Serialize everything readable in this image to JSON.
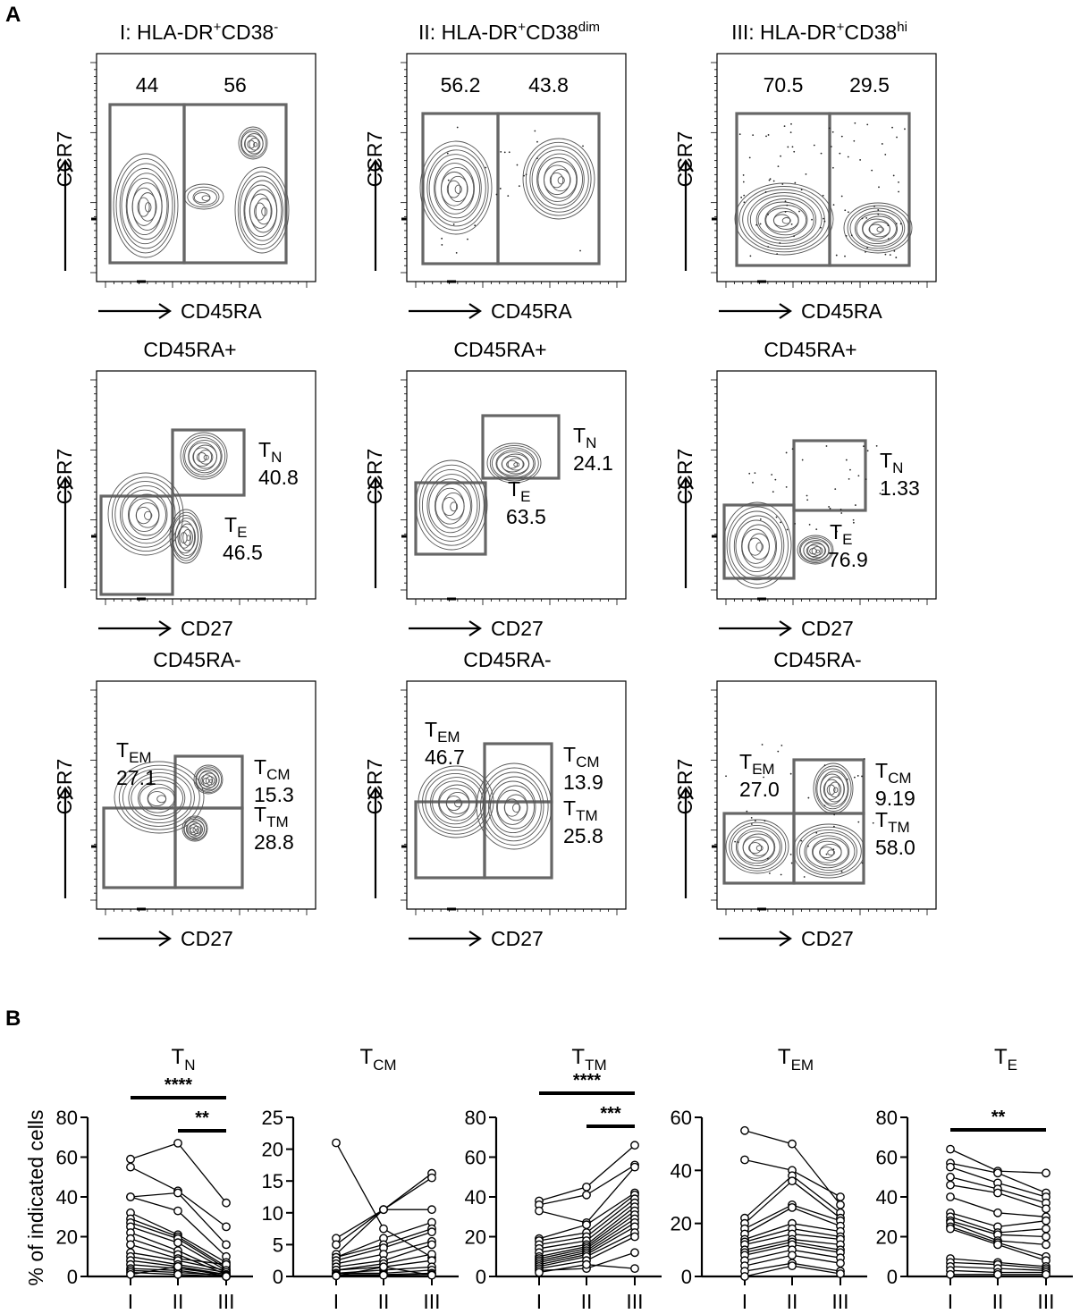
{
  "panel_labels": {
    "a": "A",
    "b": "B"
  },
  "colors": {
    "gate": "#666666",
    "contour": "#555555",
    "ink": "#000000"
  },
  "columns": [
    {
      "roman": "I",
      "prefix": "HLA-DR",
      "sup1": "+",
      "mid": "CD38",
      "sup2": "-"
    },
    {
      "roman": "II",
      "prefix": "HLA-DR",
      "sup1": "+",
      "mid": "CD38",
      "sup2": "dim"
    },
    {
      "roman": "III",
      "prefix": "HLA-DR",
      "sup1": "+",
      "mid": "CD38",
      "sup2": "hi"
    }
  ],
  "row_titles": [
    "",
    "CD45RA+",
    "CD45RA-"
  ],
  "axes": {
    "y": "CCR7",
    "x_row1": "CD45RA",
    "x_row2": "CD27",
    "x_row3": "CD27"
  },
  "flow_values": {
    "row1": [
      [
        "44",
        "56"
      ],
      [
        "56.2",
        "43.8"
      ],
      [
        "70.5",
        "29.5"
      ]
    ],
    "row2": [
      {
        "tn": "40.8",
        "te": "46.5"
      },
      {
        "tn": "24.1",
        "te": "63.5"
      },
      {
        "tn": "1.33",
        "te": "76.9"
      }
    ],
    "row3": [
      {
        "tem": "27.1",
        "tcm": "15.3",
        "ttm": "28.8"
      },
      {
        "tem": "46.7",
        "tcm": "13.9",
        "ttm": "25.8"
      },
      {
        "tem": "27.0",
        "tcm": "9.19",
        "ttm": "58.0"
      }
    ]
  },
  "gate_labels": {
    "tn": {
      "main": "T",
      "sub": "N"
    },
    "te": {
      "main": "T",
      "sub": "E"
    },
    "tem": {
      "main": "T",
      "sub": "EM"
    },
    "tcm": {
      "main": "T",
      "sub": "CM"
    },
    "ttm": {
      "main": "T",
      "sub": "TM"
    }
  },
  "chart_data": [
    {
      "type": "line",
      "title": "T_N",
      "title_main": "T",
      "title_sub": "N",
      "ylabel": "% of indicated cells",
      "categories": [
        "I",
        "II",
        "III"
      ],
      "ylim": [
        0,
        80
      ],
      "yticks": [
        0,
        20,
        40,
        60,
        80
      ],
      "significance": [
        {
          "from": "I",
          "to": "III",
          "label": "****"
        },
        {
          "from": "II",
          "to": "III",
          "label": "**"
        }
      ],
      "series": [
        {
          "values": [
            59,
            67,
            37
          ]
        },
        {
          "values": [
            55,
            43,
            25
          ]
        },
        {
          "values": [
            40,
            42,
            16
          ]
        },
        {
          "values": [
            40,
            33,
            10
          ]
        },
        {
          "values": [
            32,
            21,
            7
          ]
        },
        {
          "values": [
            29,
            20,
            5
          ]
        },
        {
          "values": [
            27,
            19,
            4
          ]
        },
        {
          "values": [
            25,
            17,
            3
          ]
        },
        {
          "values": [
            22,
            13,
            2
          ]
        },
        {
          "values": [
            19,
            11,
            1
          ]
        },
        {
          "values": [
            16,
            9,
            6
          ]
        },
        {
          "values": [
            12,
            8,
            3
          ]
        },
        {
          "values": [
            10,
            6,
            2
          ]
        },
        {
          "values": [
            8,
            5,
            1
          ]
        },
        {
          "values": [
            6,
            4,
            1
          ]
        },
        {
          "values": [
            4,
            3,
            0
          ]
        },
        {
          "values": [
            3,
            2,
            0.5
          ]
        },
        {
          "values": [
            2,
            1,
            0
          ]
        },
        {
          "values": [
            1,
            5,
            0
          ]
        }
      ]
    },
    {
      "type": "line",
      "title": "T_CM",
      "title_main": "T",
      "title_sub": "CM",
      "categories": [
        "I",
        "II",
        "III"
      ],
      "ylim": [
        0,
        25
      ],
      "yticks": [
        0,
        5,
        10,
        15,
        20,
        25
      ],
      "significance": [],
      "series": [
        {
          "values": [
            21,
            7.5,
            3
          ]
        },
        {
          "values": [
            6,
            10.5,
            16.2
          ]
        },
        {
          "values": [
            5,
            10.5,
            15.5
          ]
        },
        {
          "values": [
            3.5,
            10.5,
            10.5
          ]
        },
        {
          "values": [
            3,
            6,
            8.5
          ]
        },
        {
          "values": [
            3,
            5,
            7.5
          ]
        },
        {
          "values": [
            2.5,
            4.5,
            7
          ]
        },
        {
          "values": [
            2,
            3.5,
            5.5
          ]
        },
        {
          "values": [
            1.5,
            2.5,
            5
          ]
        },
        {
          "values": [
            1,
            2,
            3.5
          ]
        },
        {
          "values": [
            1,
            1.5,
            2.5
          ]
        },
        {
          "values": [
            0.5,
            1,
            1.5
          ]
        },
        {
          "values": [
            0.5,
            0.5,
            1
          ]
        },
        {
          "values": [
            0.3,
            0.3,
            0.5
          ]
        },
        {
          "values": [
            0.2,
            0.2,
            0.3
          ]
        },
        {
          "values": [
            0.1,
            1.5,
            0.2
          ]
        }
      ]
    },
    {
      "type": "line",
      "title": "T_TM",
      "title_main": "T",
      "title_sub": "TM",
      "categories": [
        "I",
        "II",
        "III"
      ],
      "ylim": [
        0,
        80
      ],
      "yticks": [
        0,
        20,
        40,
        60,
        80
      ],
      "significance": [
        {
          "from": "I",
          "to": "III",
          "label": "****"
        },
        {
          "from": "II",
          "to": "III",
          "label": "***"
        }
      ],
      "series": [
        {
          "values": [
            38,
            45,
            66
          ]
        },
        {
          "values": [
            36,
            41,
            56
          ]
        },
        {
          "values": [
            33,
            27,
            55
          ]
        },
        {
          "values": [
            19,
            26,
            42
          ]
        },
        {
          "values": [
            18,
            22,
            41
          ]
        },
        {
          "values": [
            16,
            20,
            39
          ]
        },
        {
          "values": [
            14,
            18,
            37
          ]
        },
        {
          "values": [
            12,
            16,
            35
          ]
        },
        {
          "values": [
            10,
            15,
            33
          ]
        },
        {
          "values": [
            9,
            14,
            31
          ]
        },
        {
          "values": [
            8,
            13,
            29
          ]
        },
        {
          "values": [
            7,
            12,
            27
          ]
        },
        {
          "values": [
            6,
            11,
            25
          ]
        },
        {
          "values": [
            5,
            10,
            22
          ]
        },
        {
          "values": [
            4,
            8,
            20
          ]
        },
        {
          "values": [
            3,
            4,
            12
          ]
        },
        {
          "values": [
            2,
            6,
            4
          ]
        }
      ]
    },
    {
      "type": "line",
      "title": "T_EM",
      "title_main": "T",
      "title_sub": "EM",
      "categories": [
        "I",
        "II",
        "III"
      ],
      "ylim": [
        0,
        60
      ],
      "yticks": [
        0,
        20,
        40,
        60
      ],
      "significance": [],
      "series": [
        {
          "values": [
            55,
            50,
            27
          ]
        },
        {
          "values": [
            44,
            40,
            30
          ]
        },
        {
          "values": [
            22,
            38,
            24
          ]
        },
        {
          "values": [
            20,
            36,
            22
          ]
        },
        {
          "values": [
            18,
            27,
            21
          ]
        },
        {
          "values": [
            16,
            26,
            19
          ]
        },
        {
          "values": [
            14,
            20,
            17
          ]
        },
        {
          "values": [
            13,
            18,
            15
          ]
        },
        {
          "values": [
            12,
            16,
            14
          ]
        },
        {
          "values": [
            10,
            14,
            12
          ]
        },
        {
          "values": [
            9,
            13,
            10
          ]
        },
        {
          "values": [
            8,
            12,
            9
          ]
        },
        {
          "values": [
            6,
            10,
            7
          ]
        },
        {
          "values": [
            4,
            8,
            5
          ]
        },
        {
          "values": [
            2,
            5,
            2
          ]
        },
        {
          "values": [
            0,
            4,
            1
          ]
        }
      ]
    },
    {
      "type": "line",
      "title": "T_E",
      "title_main": "T",
      "title_sub": "E",
      "categories": [
        "I",
        "II",
        "III"
      ],
      "ylim": [
        0,
        80
      ],
      "yticks": [
        0,
        20,
        40,
        60,
        80
      ],
      "significance": [
        {
          "from": "I",
          "to": "III",
          "label": "**"
        }
      ],
      "series": [
        {
          "values": [
            64,
            53,
            52
          ]
        },
        {
          "values": [
            57,
            52,
            42
          ]
        },
        {
          "values": [
            55,
            47,
            40
          ]
        },
        {
          "values": [
            50,
            44,
            37
          ]
        },
        {
          "values": [
            46,
            42,
            34
          ]
        },
        {
          "values": [
            40,
            32,
            30
          ]
        },
        {
          "values": [
            32,
            25,
            28
          ]
        },
        {
          "values": [
            30,
            22,
            24
          ]
        },
        {
          "values": [
            28,
            21,
            20
          ]
        },
        {
          "values": [
            27,
            18,
            16
          ]
        },
        {
          "values": [
            25,
            17,
            10
          ]
        },
        {
          "values": [
            24,
            16,
            8
          ]
        },
        {
          "values": [
            9,
            7,
            5
          ]
        },
        {
          "values": [
            7,
            6,
            4
          ]
        },
        {
          "values": [
            5,
            4,
            3
          ]
        },
        {
          "values": [
            3,
            2,
            2
          ]
        },
        {
          "values": [
            1,
            1,
            1
          ]
        }
      ]
    }
  ]
}
